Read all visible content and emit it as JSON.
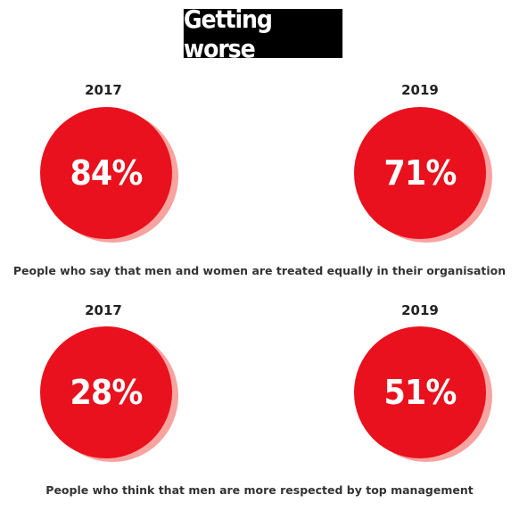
{
  "title": "Getting worse",
  "chart_data": [
    {
      "type": "pie",
      "caption": "People who say that men and women are treated equally in their organisation",
      "categories": [
        "2017",
        "2019"
      ],
      "values": [
        "84%",
        "71%"
      ],
      "numeric_values": [
        84,
        71
      ]
    },
    {
      "type": "pie",
      "caption": "People who think that men are more respected by top management",
      "categories": [
        "2017",
        "2019"
      ],
      "values": [
        "28%",
        "51%"
      ],
      "numeric_values": [
        28,
        51
      ]
    }
  ],
  "colors": {
    "circle": "#e8111d",
    "shadow": "#f7a3a0",
    "title_bg": "#000000"
  }
}
